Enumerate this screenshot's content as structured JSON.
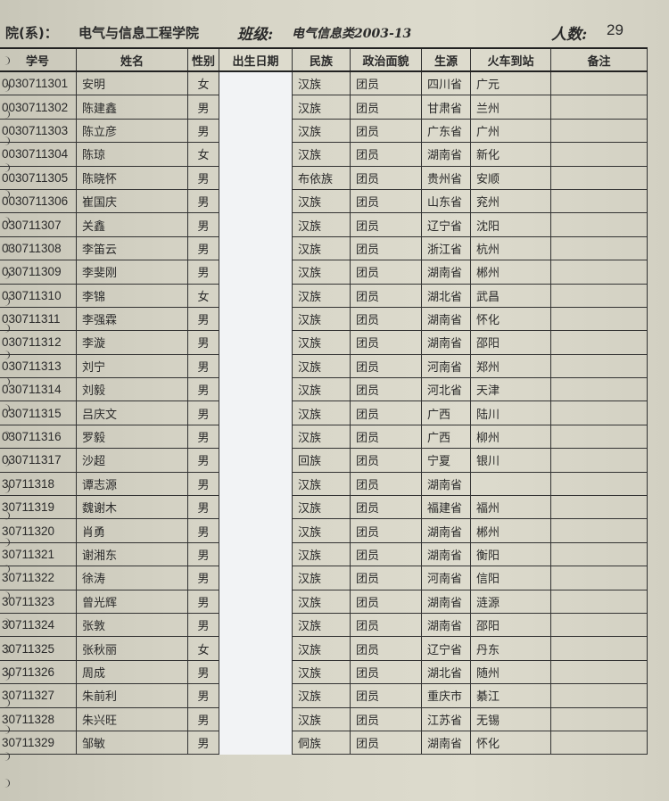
{
  "header": {
    "department_label": "院(系)：",
    "department": "电气与信息工程学院",
    "class_label": "班级:",
    "class_name": "电气信息类2003-13",
    "count_label": "人数:",
    "count": "29"
  },
  "columns": [
    "学号",
    "姓名",
    "性别",
    "出生日期",
    "民族",
    "政治面貌",
    "生源",
    "火车到站",
    "备注"
  ],
  "rows": [
    {
      "id": "0030711301",
      "name": "安明",
      "sex": "女",
      "ethnicity": "汉族",
      "politics": "团员",
      "origin": "四川省",
      "station": "广元"
    },
    {
      "id": "0030711302",
      "name": "陈建鑫",
      "sex": "男",
      "ethnicity": "汉族",
      "politics": "团员",
      "origin": "甘肃省",
      "station": "兰州"
    },
    {
      "id": "0030711303",
      "name": "陈立彦",
      "sex": "男",
      "ethnicity": "汉族",
      "politics": "团员",
      "origin": "广东省",
      "station": "广州"
    },
    {
      "id": "0030711304",
      "name": "陈琼",
      "sex": "女",
      "ethnicity": "汉族",
      "politics": "团员",
      "origin": "湖南省",
      "station": "新化"
    },
    {
      "id": "0030711305",
      "name": "陈晓怀",
      "sex": "男",
      "ethnicity": "布依族",
      "politics": "团员",
      "origin": "贵州省",
      "station": "安顺"
    },
    {
      "id": "0030711306",
      "name": "崔国庆",
      "sex": "男",
      "ethnicity": "汉族",
      "politics": "团员",
      "origin": "山东省",
      "station": "兖州"
    },
    {
      "id": "030711307",
      "name": "关鑫",
      "sex": "男",
      "ethnicity": "汉族",
      "politics": "团员",
      "origin": "辽宁省",
      "station": "沈阳"
    },
    {
      "id": "030711308",
      "name": "李笛云",
      "sex": "男",
      "ethnicity": "汉族",
      "politics": "团员",
      "origin": "浙江省",
      "station": "杭州"
    },
    {
      "id": "030711309",
      "name": "李斐刚",
      "sex": "男",
      "ethnicity": "汉族",
      "politics": "团员",
      "origin": "湖南省",
      "station": "郴州"
    },
    {
      "id": "030711310",
      "name": "李锦",
      "sex": "女",
      "ethnicity": "汉族",
      "politics": "团员",
      "origin": "湖北省",
      "station": "武昌"
    },
    {
      "id": "030711311",
      "name": "李强霖",
      "sex": "男",
      "ethnicity": "汉族",
      "politics": "团员",
      "origin": "湖南省",
      "station": "怀化"
    },
    {
      "id": "030711312",
      "name": "李漩",
      "sex": "男",
      "ethnicity": "汉族",
      "politics": "团员",
      "origin": "湖南省",
      "station": "邵阳"
    },
    {
      "id": "030711313",
      "name": "刘宁",
      "sex": "男",
      "ethnicity": "汉族",
      "politics": "团员",
      "origin": "河南省",
      "station": "郑州"
    },
    {
      "id": "030711314",
      "name": "刘毅",
      "sex": "男",
      "ethnicity": "汉族",
      "politics": "团员",
      "origin": "河北省",
      "station": "天津"
    },
    {
      "id": "030711315",
      "name": "吕庆文",
      "sex": "男",
      "ethnicity": "汉族",
      "politics": "团员",
      "origin": "广西",
      "station": "陆川"
    },
    {
      "id": "030711316",
      "name": "罗毅",
      "sex": "男",
      "ethnicity": "汉族",
      "politics": "团员",
      "origin": "广西",
      "station": "柳州"
    },
    {
      "id": "030711317",
      "name": "沙超",
      "sex": "男",
      "ethnicity": "回族",
      "politics": "团员",
      "origin": "宁夏",
      "station": "银川"
    },
    {
      "id": "30711318",
      "name": "谭志源",
      "sex": "男",
      "ethnicity": "汉族",
      "politics": "团员",
      "origin": "湖南省",
      "station": ""
    },
    {
      "id": "30711319",
      "name": "魏谢木",
      "sex": "男",
      "ethnicity": "汉族",
      "politics": "团员",
      "origin": "福建省",
      "station": "福州"
    },
    {
      "id": "30711320",
      "name": "肖勇",
      "sex": "男",
      "ethnicity": "汉族",
      "politics": "团员",
      "origin": "湖南省",
      "station": "郴州"
    },
    {
      "id": "30711321",
      "name": "谢湘东",
      "sex": "男",
      "ethnicity": "汉族",
      "politics": "团员",
      "origin": "湖南省",
      "station": "衡阳"
    },
    {
      "id": "30711322",
      "name": "徐涛",
      "sex": "男",
      "ethnicity": "汉族",
      "politics": "团员",
      "origin": "河南省",
      "station": "信阳"
    },
    {
      "id": "30711323",
      "name": "曾光辉",
      "sex": "男",
      "ethnicity": "汉族",
      "politics": "团员",
      "origin": "湖南省",
      "station": "涟源"
    },
    {
      "id": "30711324",
      "name": "张敦",
      "sex": "男",
      "ethnicity": "汉族",
      "politics": "团员",
      "origin": "湖南省",
      "station": "邵阳"
    },
    {
      "id": "30711325",
      "name": "张秋丽",
      "sex": "女",
      "ethnicity": "汉族",
      "politics": "团员",
      "origin": "辽宁省",
      "station": "丹东"
    },
    {
      "id": "30711326",
      "name": "周成",
      "sex": "男",
      "ethnicity": "汉族",
      "politics": "团员",
      "origin": "湖北省",
      "station": "随州"
    },
    {
      "id": "30711327",
      "name": "朱前利",
      "sex": "男",
      "ethnicity": "汉族",
      "politics": "团员",
      "origin": "重庆市",
      "station": "綦江"
    },
    {
      "id": "30711328",
      "name": "朱兴旺",
      "sex": "男",
      "ethnicity": "汉族",
      "politics": "团员",
      "origin": "江苏省",
      "station": "无锡"
    },
    {
      "id": "30711329",
      "name": "邹敏",
      "sex": "男",
      "ethnicity": "侗族",
      "politics": "团员",
      "origin": "湖南省",
      "station": "怀化"
    }
  ]
}
